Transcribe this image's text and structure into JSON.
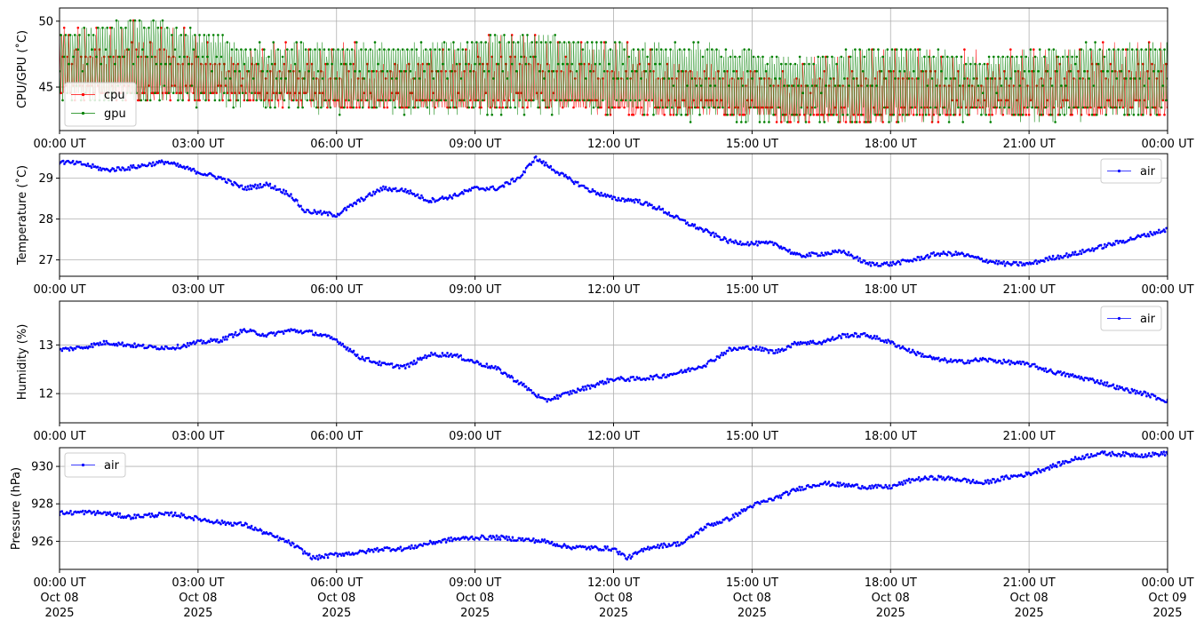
{
  "chart_data": [
    {
      "type": "line",
      "ylabel": "CPU/GPU (˚C)",
      "ylim": [
        41.7,
        51.0
      ],
      "yticks": [
        45,
        50
      ],
      "legend_position": "lower-left",
      "grid": true,
      "x_ticks": [
        "00:00 UT",
        "03:00 UT",
        "06:00 UT",
        "09:00 UT",
        "12:00 UT",
        "15:00 UT",
        "18:00 UT",
        "21:00 UT",
        "00:00 UT"
      ],
      "x_hours": [
        0,
        3,
        6,
        9,
        12,
        15,
        18,
        21,
        24
      ],
      "series": [
        {
          "name": "cpu",
          "color": "#ff0000",
          "style": "oscillating",
          "x": [
            0,
            2,
            4,
            6,
            8,
            10,
            12,
            14,
            16,
            18,
            20,
            22,
            24
          ],
          "low": [
            44.0,
            44.0,
            43.8,
            43.2,
            43.3,
            43.3,
            43.0,
            43.0,
            42.3,
            42.3,
            42.8,
            42.8,
            42.8
          ],
          "high": [
            49.5,
            50.4,
            48.3,
            48.4,
            48.4,
            49.3,
            48.4,
            48.4,
            47.4,
            48.3,
            47.6,
            48.3,
            48.6
          ]
        },
        {
          "name": "gpu",
          "color": "#008000",
          "style": "oscillating",
          "x": [
            0,
            2,
            4,
            6,
            8,
            10,
            12,
            14,
            16,
            18,
            20,
            22,
            24
          ],
          "low": [
            43.8,
            43.8,
            43.5,
            43.0,
            43.0,
            43.0,
            43.0,
            42.5,
            42.0,
            42.4,
            42.5,
            42.5,
            42.7
          ],
          "high": [
            49.3,
            50.4,
            48.3,
            48.3,
            48.3,
            49.3,
            48.3,
            48.3,
            47.3,
            48.3,
            47.3,
            48.3,
            48.3
          ]
        }
      ]
    },
    {
      "type": "line",
      "ylabel": "Temperature (˚C)",
      "ylim": [
        26.6,
        29.6
      ],
      "yticks": [
        27,
        28,
        29
      ],
      "legend_position": "upper-right",
      "grid": true,
      "x_ticks": [
        "00:00 UT",
        "03:00 UT",
        "06:00 UT",
        "09:00 UT",
        "12:00 UT",
        "15:00 UT",
        "18:00 UT",
        "21:00 UT",
        "00:00 UT"
      ],
      "x_hours": [
        0,
        3,
        6,
        9,
        12,
        15,
        18,
        21,
        24
      ],
      "series": [
        {
          "name": "air",
          "color": "#0000ff",
          "x": [
            0,
            0.5,
            1,
            1.5,
            2,
            2.3,
            3,
            3.5,
            4,
            4.5,
            5,
            5.3,
            6,
            6.5,
            7,
            7.5,
            8,
            8.5,
            9,
            9.5,
            10,
            10.3,
            11,
            11.5,
            12,
            12.5,
            13,
            13.5,
            14,
            14.5,
            15,
            15.5,
            16,
            16.5,
            17,
            17.5,
            18,
            18.5,
            19,
            19.5,
            20,
            20.5,
            21,
            21.5,
            22,
            22.5,
            23,
            23.5,
            24
          ],
          "y": [
            29.4,
            29.35,
            29.2,
            29.25,
            29.35,
            29.4,
            29.15,
            29.0,
            28.75,
            28.85,
            28.6,
            28.2,
            28.1,
            28.45,
            28.75,
            28.7,
            28.45,
            28.55,
            28.75,
            28.75,
            29.05,
            29.5,
            29.0,
            28.7,
            28.5,
            28.45,
            28.25,
            27.95,
            27.7,
            27.45,
            27.4,
            27.4,
            27.1,
            27.15,
            27.2,
            26.9,
            26.9,
            27.0,
            27.15,
            27.15,
            27.0,
            26.9,
            26.9,
            27.05,
            27.15,
            27.3,
            27.45,
            27.6,
            27.75
          ]
        }
      ]
    },
    {
      "type": "line",
      "ylabel": "Humidity (%)",
      "ylim": [
        11.4,
        13.9
      ],
      "yticks": [
        12,
        13
      ],
      "legend_position": "upper-right",
      "grid": true,
      "x_ticks": [
        "00:00 UT",
        "03:00 UT",
        "06:00 UT",
        "09:00 UT",
        "12:00 UT",
        "15:00 UT",
        "18:00 UT",
        "21:00 UT",
        "00:00 UT"
      ],
      "x_hours": [
        0,
        3,
        6,
        9,
        12,
        15,
        18,
        21,
        24
      ],
      "series": [
        {
          "name": "air",
          "color": "#0000ff",
          "x": [
            0,
            0.5,
            1,
            1.5,
            2,
            2.5,
            3,
            3.5,
            4,
            4.5,
            5,
            5.5,
            6,
            6.5,
            7,
            7.5,
            8,
            8.5,
            9,
            9.5,
            10,
            10.5,
            11,
            11.5,
            12,
            12.5,
            13,
            13.5,
            14,
            14.5,
            15,
            15.5,
            16,
            16.5,
            17,
            17.5,
            18,
            18.5,
            19,
            19.5,
            20,
            20.5,
            21,
            21.5,
            22,
            22.5,
            23,
            23.5,
            24
          ],
          "y": [
            12.9,
            12.95,
            13.05,
            13.0,
            12.95,
            12.95,
            13.05,
            13.1,
            13.3,
            13.2,
            13.3,
            13.25,
            13.1,
            12.75,
            12.6,
            12.55,
            12.8,
            12.8,
            12.65,
            12.5,
            12.2,
            11.85,
            12.0,
            12.15,
            12.3,
            12.3,
            12.35,
            12.45,
            12.6,
            12.9,
            12.95,
            12.85,
            13.05,
            13.05,
            13.2,
            13.2,
            13.05,
            12.85,
            12.7,
            12.65,
            12.7,
            12.65,
            12.6,
            12.45,
            12.35,
            12.25,
            12.1,
            12.0,
            11.85
          ]
        }
      ]
    },
    {
      "type": "line",
      "ylabel": "Pressure (hPa)",
      "ylim": [
        924.5,
        931.0
      ],
      "yticks": [
        926,
        928,
        930
      ],
      "legend_position": "upper-left",
      "grid": true,
      "x_ticks": [
        "00:00 UT\nOct 08\n2025",
        "03:00 UT\nOct 08\n2025",
        "06:00 UT\nOct 08\n2025",
        "09:00 UT\nOct 08\n2025",
        "12:00 UT\nOct 08\n2025",
        "15:00 UT\nOct 08\n2025",
        "18:00 UT\nOct 08\n2025",
        "21:00 UT\nOct 08\n2025",
        "00:00 UT\nOct 09\n2025"
      ],
      "x_hours": [
        0,
        3,
        6,
        9,
        12,
        15,
        18,
        21,
        24
      ],
      "series": [
        {
          "name": "air",
          "color": "#0000ff",
          "x": [
            0,
            0.5,
            1,
            1.5,
            2,
            2.5,
            3,
            3.5,
            4,
            4.5,
            5,
            5.5,
            6,
            6.5,
            7,
            7.5,
            8,
            8.5,
            9,
            9.5,
            10,
            10.5,
            11,
            11.5,
            12,
            12.3,
            12.8,
            13.5,
            14,
            14.5,
            15,
            15.5,
            16,
            16.5,
            17,
            17.5,
            18,
            18.5,
            19,
            19.5,
            20,
            20.5,
            21,
            21.5,
            22,
            22.5,
            23,
            23.5,
            24
          ],
          "y": [
            927.5,
            927.55,
            927.5,
            927.3,
            927.4,
            927.45,
            927.2,
            927.0,
            926.9,
            926.4,
            925.9,
            925.1,
            925.3,
            925.4,
            925.6,
            925.6,
            925.9,
            926.1,
            926.2,
            926.2,
            926.1,
            926.0,
            925.7,
            925.65,
            925.6,
            925.1,
            925.7,
            925.9,
            926.8,
            927.2,
            927.9,
            928.3,
            928.8,
            929.1,
            929.0,
            928.9,
            928.9,
            929.3,
            929.4,
            929.3,
            929.1,
            929.4,
            929.6,
            930.0,
            930.4,
            930.7,
            930.65,
            930.6,
            930.7
          ]
        }
      ]
    }
  ]
}
